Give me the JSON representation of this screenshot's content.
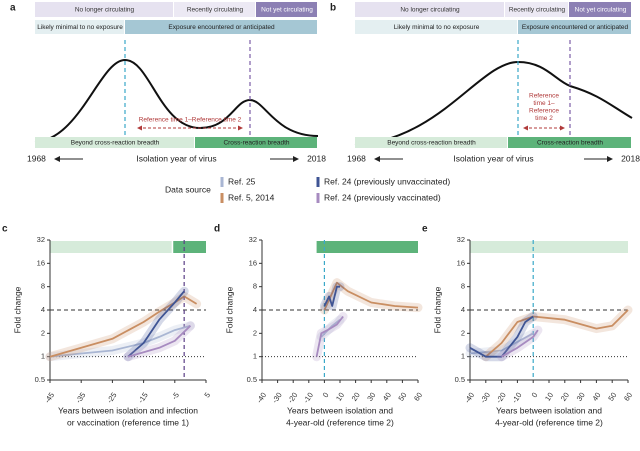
{
  "diagrams": [
    {
      "label": "a",
      "circulation": [
        "No longer circulating",
        "Recently circulating",
        "Not yet circulating"
      ],
      "exposure": [
        "Likely minimal to no exposure",
        "Exposure encountered or anticipated"
      ],
      "breadth": [
        "Beyond cross-reaction breadth",
        "Cross-reaction breadth"
      ],
      "reference": [
        "Reference time 1–Reference time 2"
      ],
      "axis": {
        "start": "1968",
        "label": "Isolation year of virus",
        "end": "2018"
      }
    },
    {
      "label": "b",
      "circulation": [
        "No longer circulating",
        "Recently circulating",
        "Not yet circulating"
      ],
      "exposure": [
        "Likely minimal to no exposure",
        "Exposure encountered or anticipated"
      ],
      "breadth": [
        "Beyond cross-reaction breadth",
        "Cross-reaction breadth"
      ],
      "reference": [
        "Reference",
        "time 1–",
        "Reference",
        "time 2"
      ],
      "axis": {
        "start": "1968",
        "label": "Isolation year of virus",
        "end": "2018"
      }
    }
  ],
  "legend": {
    "title": "Data source"
  },
  "chart_data": [
    {
      "type": "line",
      "label": "c",
      "ylabel": "Fold change",
      "xlabel": [
        "Years between isolation and infection",
        "or vaccination (reference time 1)"
      ],
      "xlim": [
        -45,
        5
      ],
      "xticks": [
        -45,
        -35,
        -25,
        -15,
        -5,
        5
      ],
      "ylim": [
        0.5,
        32
      ],
      "yticks": [
        0.5,
        1,
        2,
        4,
        8,
        16,
        32
      ],
      "log_scale": true,
      "bands": [
        {
          "start": -45,
          "end": -6,
          "color": "#d6ebda"
        },
        {
          "start": -5.5,
          "end": 5,
          "color": "#5db37a"
        }
      ],
      "hlines": [
        {
          "value": 4,
          "style": "dashed"
        },
        {
          "value": 1,
          "style": "dotted"
        }
      ],
      "vline": {
        "value": -2,
        "color": "#5b3f86"
      },
      "series": [
        {
          "name": "Ref. 25",
          "color": "#a9b6d3",
          "x": [
            -45,
            -35,
            -25,
            -15,
            -10,
            -5,
            0
          ],
          "values": [
            1.0,
            1.1,
            1.2,
            1.5,
            1.8,
            2.2,
            2.5
          ]
        },
        {
          "name": "Ref. 5, 2014",
          "color": "#c98e62",
          "x": [
            -45,
            -35,
            -25,
            -15,
            -10,
            -5,
            -2,
            2
          ],
          "values": [
            1.0,
            1.3,
            1.7,
            2.8,
            3.8,
            5.0,
            6.0,
            4.8
          ]
        },
        {
          "name": "Ref. 24 (previously unvaccinated)",
          "color": "#3f5494",
          "x": [
            -20,
            -15,
            -10,
            -5,
            -2
          ],
          "values": [
            1.0,
            1.5,
            3.0,
            5.0,
            7.0
          ]
        },
        {
          "name": "Ref. 24 (previously vaccinated)",
          "color": "#a78bc0",
          "x": [
            -20,
            -10,
            -5,
            0
          ],
          "values": [
            1.0,
            1.3,
            1.6,
            2.5
          ]
        }
      ]
    },
    {
      "type": "line",
      "label": "d",
      "ylabel": "Fold change",
      "xlabel": [
        "Years between isolation and",
        "4-year-old (reference time 2)"
      ],
      "xlim": [
        -40,
        60
      ],
      "xticks": [
        -40,
        -30,
        -20,
        -10,
        0,
        10,
        20,
        30,
        40,
        50,
        60
      ],
      "ylim": [
        0.5,
        32
      ],
      "yticks": [
        0.5,
        1,
        2,
        4,
        8,
        16,
        32
      ],
      "log_scale": true,
      "bands": [
        {
          "start": -5,
          "end": 60,
          "color": "#5db37a"
        }
      ],
      "hlines": [
        {
          "value": 4,
          "style": "dashed"
        },
        {
          "value": 1,
          "style": "dotted"
        }
      ],
      "vline": {
        "value": 0,
        "color": "#3aa8c8"
      },
      "series": [
        {
          "name": "Ref. 25",
          "color": "#a9b6d3",
          "x": [
            -2,
            5,
            10
          ],
          "values": [
            1.8,
            2.5,
            3.0
          ]
        },
        {
          "name": "Ref. 5, 2014",
          "color": "#c98e62",
          "x": [
            0,
            8,
            15,
            30,
            45,
            60
          ],
          "values": [
            4.0,
            9.0,
            7.0,
            5.0,
            4.5,
            4.3
          ]
        },
        {
          "name": "Ref. 24 (previously unvaccinated)",
          "color": "#3f5494",
          "x": [
            0,
            3,
            5,
            8,
            10
          ],
          "values": [
            4.5,
            6.0,
            4.5,
            8.0,
            8.0
          ]
        },
        {
          "name": "Ref. 24 (previously vaccinated)",
          "color": "#a78bc0",
          "x": [
            -5,
            -2,
            2,
            8,
            12
          ],
          "values": [
            1.0,
            2.0,
            2.2,
            2.6,
            3.3
          ]
        }
      ]
    },
    {
      "type": "line",
      "label": "e",
      "ylabel": "Fold change",
      "xlabel": [
        "Years between isolation and",
        "4-year-old (reference time 2)"
      ],
      "xlim": [
        -40,
        60
      ],
      "xticks": [
        -40,
        -30,
        -20,
        -10,
        0,
        10,
        20,
        30,
        40,
        50,
        60
      ],
      "ylim": [
        0.5,
        32
      ],
      "yticks": [
        0.5,
        1,
        2,
        4,
        8,
        16,
        32
      ],
      "log_scale": true,
      "bands": [
        {
          "start": -40,
          "end": 60,
          "color": "#d6ebda"
        }
      ],
      "hlines": [
        {
          "value": 4,
          "style": "dashed"
        },
        {
          "value": 1,
          "style": "dotted"
        }
      ],
      "vline": {
        "value": 0,
        "color": "#3aa8c8"
      },
      "series": [
        {
          "name": "Ref. 25",
          "color": "#a9b6d3",
          "x": [
            -40,
            -20,
            0
          ],
          "values": [
            1.1,
            1.2,
            2.0
          ]
        },
        {
          "name": "Ref. 5, 2014",
          "color": "#c98e62",
          "x": [
            -30,
            -20,
            -10,
            0,
            20,
            40,
            50,
            60
          ],
          "values": [
            1.0,
            1.5,
            2.8,
            3.3,
            3.0,
            2.3,
            2.5,
            4.0
          ]
        },
        {
          "name": "Ref. 24 (previously unvaccinated)",
          "color": "#3f5494",
          "x": [
            -40,
            -30,
            -20,
            -10,
            -5,
            0
          ],
          "values": [
            1.3,
            1.0,
            1.0,
            1.8,
            2.8,
            3.3
          ]
        },
        {
          "name": "Ref. 24 (previously vaccinated)",
          "color": "#a78bc0",
          "x": [
            -20,
            -10,
            0,
            3
          ],
          "values": [
            1.0,
            1.3,
            1.8,
            2.2
          ]
        }
      ]
    }
  ]
}
